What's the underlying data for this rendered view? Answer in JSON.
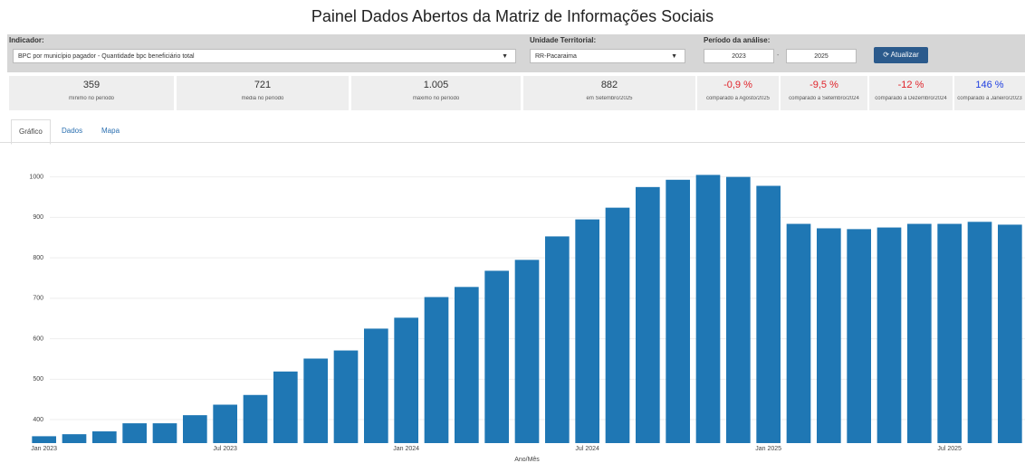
{
  "header": {
    "title": "Painel Dados Abertos da Matriz de Informações Sociais"
  },
  "filters": {
    "indicator_label": "Indicador:",
    "indicator_value": "BPC por município pagador - Quantidade bpc beneficiário total",
    "territory_label": "Unidade Territorial:",
    "territory_value": "RR-Pacaraima",
    "period_label": "Período da análise:",
    "period_start": "2023",
    "period_sep": "-",
    "period_end": "2025",
    "button": "Atualizar"
  },
  "stats": [
    {
      "value": "359",
      "label": "mínimo no período"
    },
    {
      "value": "721",
      "label": "média no período"
    },
    {
      "value": "1.005",
      "label": "máximo no período"
    },
    {
      "value": "882",
      "label": "em Setembro/2025"
    },
    {
      "value": "-0,9 %",
      "label": "comparado a Agosto/2025"
    },
    {
      "value": "-9,5 %",
      "label": "comparado a Setembro/2024"
    },
    {
      "value": "-12 %",
      "label": "comparado a Dezembro/2024"
    },
    {
      "value": "146 %",
      "label": "comparado a Janeiro/2023"
    }
  ],
  "tabs": [
    "Gráfico",
    "Dados",
    "Mapa"
  ],
  "chart_data": {
    "type": "bar",
    "x_label": "Ano/Mês",
    "color": "#1f77b4",
    "grid": true,
    "categories": [
      "Jan 2023",
      null,
      null,
      null,
      null,
      null,
      "Jul 2023",
      null,
      null,
      null,
      null,
      null,
      "Jan 2024",
      null,
      null,
      null,
      null,
      null,
      "Jul 2024",
      null,
      null,
      null,
      null,
      null,
      "Jan 2025",
      null,
      null,
      null,
      null,
      null,
      "Jul 2025",
      null,
      null
    ],
    "values": [
      359,
      364,
      371,
      391,
      391,
      411,
      437,
      461,
      519,
      551,
      571,
      625,
      652,
      703,
      728,
      768,
      795,
      853,
      895,
      924,
      975,
      993,
      1005,
      1000,
      978,
      884,
      873,
      871,
      875,
      884,
      884,
      889,
      882
    ],
    "ylim": [
      342,
      1035
    ],
    "yticks": [
      400,
      500,
      600,
      700,
      800,
      900,
      1000
    ]
  }
}
